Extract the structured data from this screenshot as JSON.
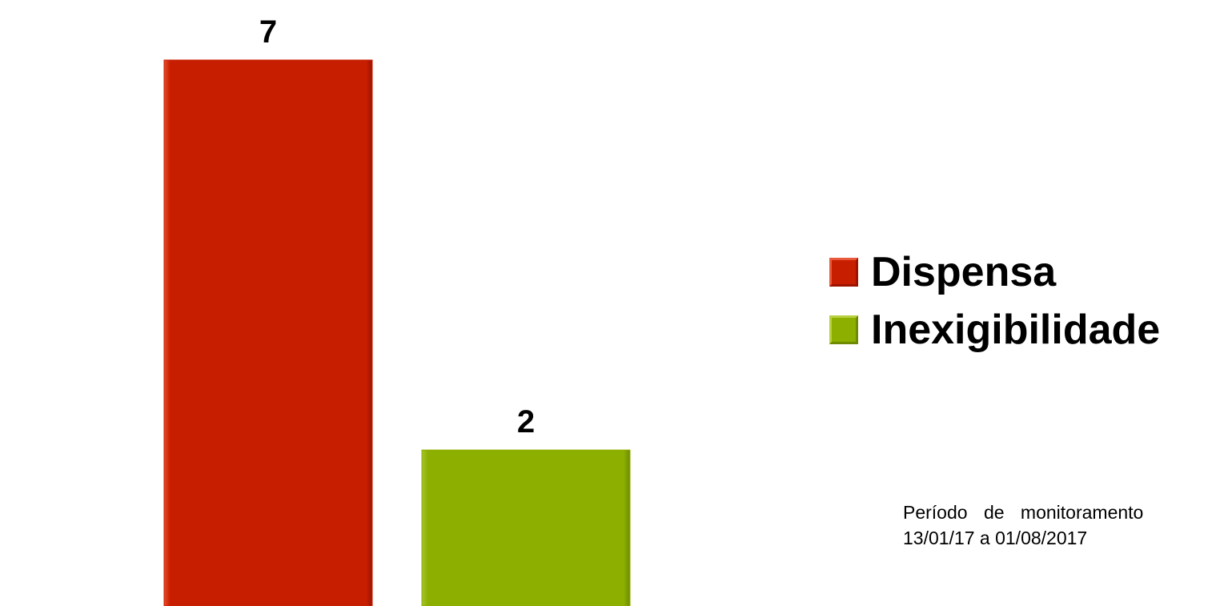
{
  "chart_data": {
    "type": "bar",
    "title": "",
    "xlabel": "",
    "ylabel": "",
    "categories": [
      "Dispensa",
      "Inexigibilidade"
    ],
    "values": [
      7,
      2
    ],
    "data_labels": [
      "7",
      "2"
    ],
    "colors": [
      "#c81e00",
      "#8caf00"
    ],
    "ylim": [
      0,
      7
    ],
    "grid": false,
    "axes_visible": false,
    "legend": {
      "position": "right",
      "entries": [
        {
          "label": "Dispensa",
          "color": "#c81e00"
        },
        {
          "label": "Inexigibilidade",
          "color": "#8caf00"
        }
      ]
    }
  },
  "note": {
    "line1": "Período de monitoramento",
    "line2": "13/01/17 a 01/08/2017"
  }
}
